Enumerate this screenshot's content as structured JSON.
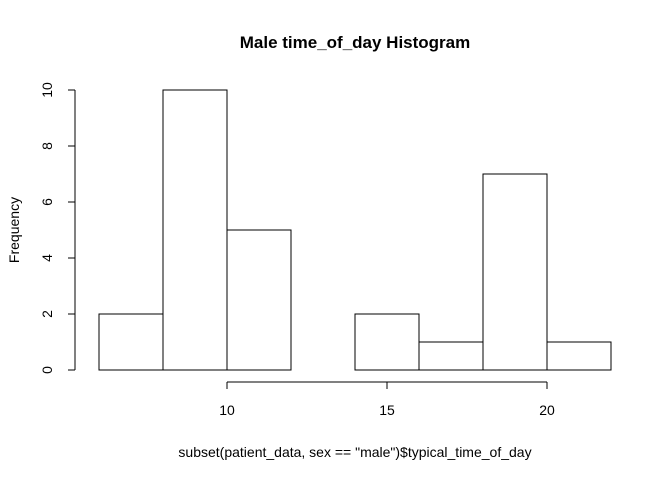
{
  "chart_data": {
    "type": "bar",
    "title": "Male time_of_day Histogram",
    "xlabel": "subset(patient_data, sex == \"male\")$typical_time_of_day",
    "ylabel": "Frequency",
    "bins": [
      {
        "x0": 6,
        "x1": 8,
        "count": 2
      },
      {
        "x0": 8,
        "x1": 10,
        "count": 10
      },
      {
        "x0": 10,
        "x1": 12,
        "count": 5
      },
      {
        "x0": 12,
        "x1": 14,
        "count": 0
      },
      {
        "x0": 14,
        "x1": 16,
        "count": 2
      },
      {
        "x0": 16,
        "x1": 18,
        "count": 1
      },
      {
        "x0": 18,
        "x1": 20,
        "count": 7
      },
      {
        "x0": 20,
        "x1": 22,
        "count": 1
      }
    ],
    "xticks": [
      10,
      15,
      20
    ],
    "xtick_labels": [
      "10",
      "15",
      "20"
    ],
    "yticks": [
      0,
      2,
      4,
      6,
      8,
      10
    ],
    "ytick_labels": [
      "0",
      "2",
      "4",
      "6",
      "8",
      "10"
    ],
    "xlim": [
      6,
      22
    ],
    "ylim": [
      0,
      10
    ],
    "grid": false,
    "legend": "none",
    "bar_fill": "#ffffff",
    "bar_stroke": "#000000"
  }
}
